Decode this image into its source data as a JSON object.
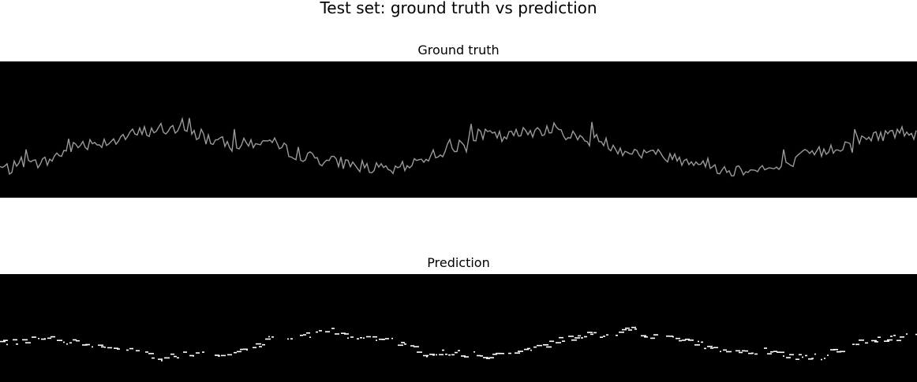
{
  "figure": {
    "title": "Test set: ground truth vs prediction"
  },
  "chart_data": [
    {
      "type": "line",
      "title": "Ground truth",
      "background": "#000000",
      "line_color": "#9a9a9a",
      "axes_visible": false,
      "xlim": [
        0,
        1162
      ],
      "ylim": [
        0,
        173
      ],
      "x": [
        0,
        20,
        40,
        60,
        80,
        100,
        120,
        140,
        160,
        180,
        200,
        220,
        240,
        260,
        280,
        300,
        320,
        340,
        360,
        380,
        400,
        420,
        440,
        460,
        480,
        500,
        520,
        540,
        560,
        580,
        600,
        620,
        640,
        660,
        680,
        700,
        720,
        740,
        760,
        780,
        800,
        820,
        840,
        860,
        880,
        900,
        920,
        940,
        960,
        980,
        1000,
        1020,
        1040,
        1060,
        1080,
        1100,
        1120,
        1140,
        1160
      ],
      "y": [
        38,
        36,
        42,
        46,
        58,
        68,
        70,
        72,
        78,
        83,
        88,
        86,
        82,
        76,
        70,
        66,
        70,
        72,
        62,
        54,
        50,
        46,
        44,
        40,
        36,
        34,
        42,
        52,
        58,
        66,
        78,
        80,
        76,
        82,
        86,
        88,
        80,
        74,
        72,
        64,
        58,
        56,
        54,
        50,
        46,
        42,
        34,
        36,
        38,
        36,
        40,
        54,
        58,
        64,
        70,
        76,
        80,
        84,
        82
      ]
    },
    {
      "type": "scatter",
      "title": "Prediction",
      "background": "#000000",
      "marker_color": "#ffffff",
      "axes_visible": false,
      "xlim": [
        0,
        1162
      ],
      "ylim": [
        0,
        137
      ],
      "x": [
        0,
        20,
        40,
        60,
        80,
        100,
        120,
        140,
        160,
        180,
        200,
        220,
        240,
        260,
        280,
        300,
        320,
        340,
        360,
        380,
        400,
        420,
        440,
        460,
        480,
        500,
        520,
        540,
        560,
        580,
        600,
        620,
        640,
        660,
        680,
        700,
        720,
        740,
        760,
        780,
        800,
        820,
        840,
        860,
        880,
        900,
        920,
        940,
        960,
        980,
        1000,
        1020,
        1040,
        1060,
        1080,
        1100,
        1120,
        1140,
        1160
      ],
      "y": [
        51,
        49,
        53,
        55,
        52,
        51,
        47,
        43,
        40,
        38,
        30,
        32,
        35,
        34,
        37,
        39,
        43,
        56,
        58,
        57,
        63,
        65,
        59,
        56,
        53,
        51,
        45,
        34,
        37,
        36,
        35,
        33,
        38,
        36,
        44,
        50,
        56,
        59,
        60,
        63,
        66,
        58,
        57,
        52,
        48,
        45,
        38,
        37,
        39,
        40,
        32,
        31,
        32,
        40,
        48,
        52,
        54,
        56,
        60
      ]
    }
  ]
}
